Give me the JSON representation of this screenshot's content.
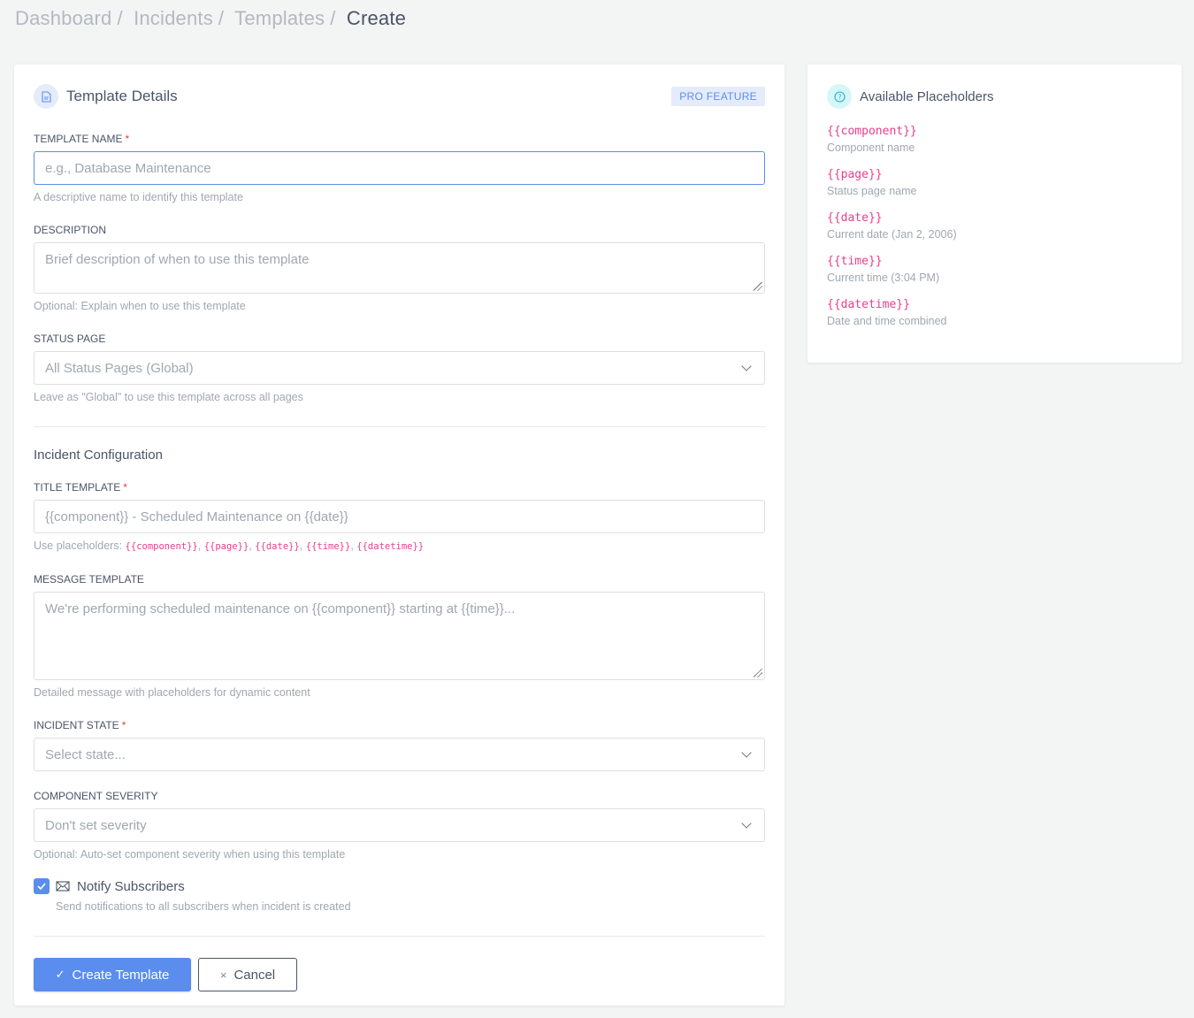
{
  "breadcrumb": [
    "Dashboard",
    "Incidents",
    "Templates",
    "Create"
  ],
  "form": {
    "title": "Template Details",
    "badge": "PRO FEATURE",
    "template_name": {
      "label": "TEMPLATE NAME",
      "required": "*",
      "placeholder": "e.g., Database Maintenance",
      "help": "A descriptive name to identify this template"
    },
    "description": {
      "label": "DESCRIPTION",
      "placeholder": "Brief description of when to use this template",
      "help": "Optional: Explain when to use this template"
    },
    "status_page": {
      "label": "STATUS PAGE",
      "value": "All Status Pages (Global)",
      "help": "Leave as \"Global\" to use this template across all pages"
    },
    "section_title": "Incident Configuration",
    "title_template": {
      "label": "TITLE TEMPLATE",
      "required": "*",
      "placeholder": "{{component}} - Scheduled Maintenance on {{date}}",
      "help_prefix": "Use placeholders:",
      "help_codes": [
        "{{component}}",
        "{{page}}",
        "{{date}}",
        "{{time}}",
        "{{datetime}}"
      ]
    },
    "message_template": {
      "label": "MESSAGE TEMPLATE",
      "placeholder": "We're performing scheduled maintenance on {{component}} starting at {{time}}...",
      "help": "Detailed message with placeholders for dynamic content"
    },
    "incident_state": {
      "label": "INCIDENT STATE",
      "required": "*",
      "value": "Select state..."
    },
    "component_severity": {
      "label": "COMPONENT SEVERITY",
      "value": "Don't set severity",
      "help": "Optional: Auto-set component severity when using this template"
    },
    "notify": {
      "label": "Notify Subscribers",
      "checked": true,
      "help": "Send notifications to all subscribers when incident is created"
    },
    "create_label": "Create Template",
    "cancel_label": "Cancel"
  },
  "placeholders": {
    "title": "Available Placeholders",
    "items": [
      {
        "code": "{{component}}",
        "desc": "Component name"
      },
      {
        "code": "{{page}}",
        "desc": "Status page name"
      },
      {
        "code": "{{date}}",
        "desc": "Current date (Jan 2, 2006)"
      },
      {
        "code": "{{time}}",
        "desc": "Current time (3:04 PM)"
      },
      {
        "code": "{{datetime}}",
        "desc": "Date and time combined"
      }
    ]
  },
  "colors": {
    "accent": "#5b8def",
    "code": "#e83e8c",
    "required": "#e53e3e"
  }
}
